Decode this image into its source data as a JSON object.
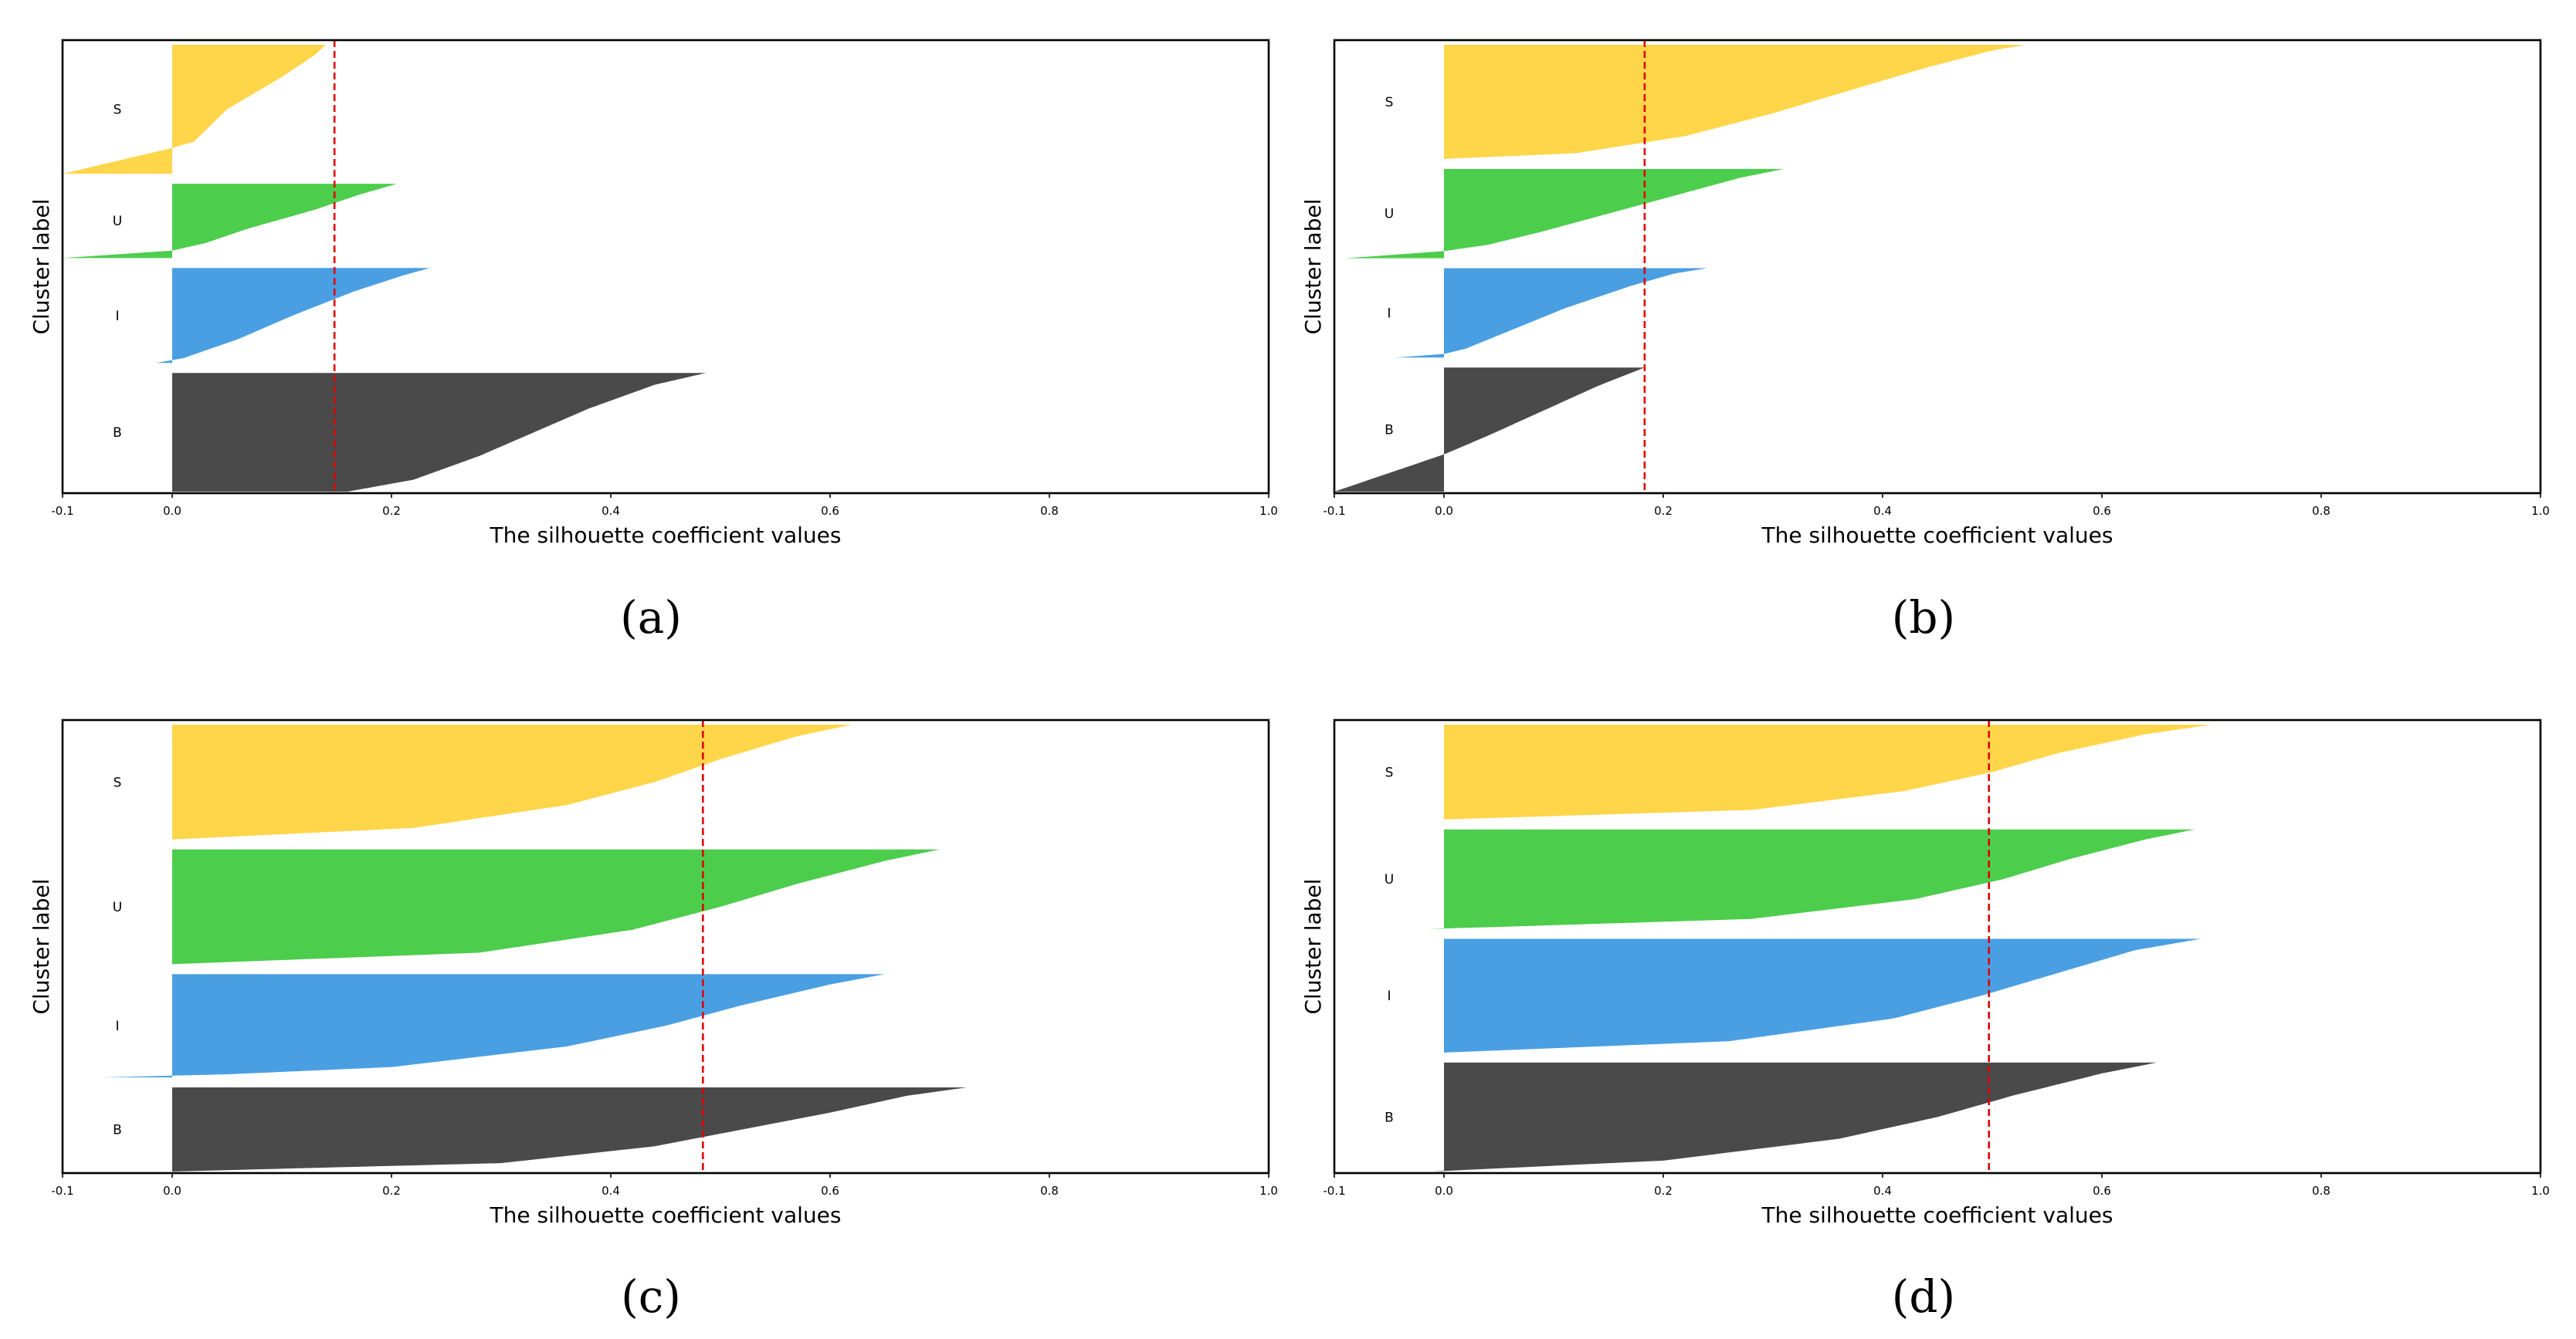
{
  "figure": {
    "palette": {
      "S": "#ffd54a",
      "U": "#4ccd4c",
      "I": "#4a9fe3",
      "B": "#4a4a4a",
      "mean_line": "#e00000",
      "axes": "#000000"
    }
  },
  "chart_data": [
    {
      "type": "silhouette",
      "caption": "(a)",
      "xlabel": "The silhouette coefficient values",
      "ylabel": "Cluster label",
      "xlim": [
        -0.1,
        1.0
      ],
      "xticks": [
        -0.1,
        0.0,
        0.2,
        0.4,
        0.6,
        0.8,
        1.0
      ],
      "xtick_labels": [
        "-0.1",
        "0.0",
        "0.2",
        "0.4",
        "0.6",
        "0.8",
        "1.0"
      ],
      "mean_silhouette": 0.148,
      "clusters": [
        {
          "label": "S",
          "size": 125,
          "max": 0.14,
          "min": -0.1,
          "profile": [
            [
              0,
              0.14
            ],
            [
              0.08,
              0.13
            ],
            [
              0.25,
              0.1
            ],
            [
              0.5,
              0.05
            ],
            [
              0.75,
              0.02
            ],
            [
              0.8,
              0.0
            ],
            [
              0.9,
              -0.05
            ],
            [
              1,
              -0.1
            ]
          ]
        },
        {
          "label": "U",
          "size": 72,
          "max": 0.205,
          "min": -0.1,
          "profile": [
            [
              0,
              0.205
            ],
            [
              0.15,
              0.17
            ],
            [
              0.35,
              0.13
            ],
            [
              0.6,
              0.07
            ],
            [
              0.8,
              0.03
            ],
            [
              0.9,
              0.0
            ],
            [
              1,
              -0.1
            ]
          ]
        },
        {
          "label": "I",
          "size": 92,
          "max": 0.235,
          "min": -0.015,
          "profile": [
            [
              0,
              0.235
            ],
            [
              0.08,
              0.21
            ],
            [
              0.25,
              0.165
            ],
            [
              0.5,
              0.11
            ],
            [
              0.75,
              0.06
            ],
            [
              0.95,
              0.01
            ],
            [
              1,
              -0.015
            ]
          ]
        },
        {
          "label": "B",
          "size": 115,
          "max": 0.487,
          "min": 0.16,
          "profile": [
            [
              0,
              0.487
            ],
            [
              0.1,
              0.44
            ],
            [
              0.3,
              0.38
            ],
            [
              0.5,
              0.33
            ],
            [
              0.7,
              0.28
            ],
            [
              0.9,
              0.22
            ],
            [
              1,
              0.16
            ]
          ]
        }
      ]
    },
    {
      "type": "silhouette",
      "caption": "(b)",
      "xlabel": "The silhouette coefficient values",
      "ylabel": "Cluster label",
      "xlim": [
        -0.1,
        1.0
      ],
      "xticks": [
        -0.1,
        0.0,
        0.2,
        0.4,
        0.6,
        0.8,
        1.0
      ],
      "xtick_labels": [
        "-0.1",
        "0.0",
        "0.2",
        "0.4",
        "0.6",
        "0.8",
        "1.0"
      ],
      "mean_silhouette": 0.183,
      "clusters": [
        {
          "label": "S",
          "size": 115,
          "max": 0.53,
          "min": 0.0,
          "profile": [
            [
              0,
              0.53
            ],
            [
              0.05,
              0.5
            ],
            [
              0.2,
              0.44
            ],
            [
              0.4,
              0.37
            ],
            [
              0.6,
              0.3
            ],
            [
              0.8,
              0.22
            ],
            [
              0.95,
              0.12
            ],
            [
              1,
              0.0
            ]
          ]
        },
        {
          "label": "U",
          "size": 90,
          "max": 0.31,
          "min": -0.09,
          "profile": [
            [
              0,
              0.31
            ],
            [
              0.1,
              0.27
            ],
            [
              0.3,
              0.21
            ],
            [
              0.5,
              0.15
            ],
            [
              0.7,
              0.09
            ],
            [
              0.85,
              0.04
            ],
            [
              0.92,
              0.0
            ],
            [
              1,
              -0.09
            ]
          ]
        },
        {
          "label": "I",
          "size": 90,
          "max": 0.24,
          "min": -0.045,
          "profile": [
            [
              0,
              0.24
            ],
            [
              0.06,
              0.21
            ],
            [
              0.2,
              0.17
            ],
            [
              0.45,
              0.11
            ],
            [
              0.7,
              0.06
            ],
            [
              0.9,
              0.02
            ],
            [
              0.96,
              0.0
            ],
            [
              1,
              -0.045
            ]
          ]
        },
        {
          "label": "B",
          "size": 125,
          "max": 0.183,
          "min": -0.1,
          "profile": [
            [
              0,
              0.183
            ],
            [
              0.15,
              0.14
            ],
            [
              0.35,
              0.09
            ],
            [
              0.55,
              0.04
            ],
            [
              0.7,
              0.0
            ],
            [
              0.85,
              -0.05
            ],
            [
              1,
              -0.1
            ]
          ]
        }
      ]
    },
    {
      "type": "silhouette",
      "caption": "(c)",
      "xlabel": "The silhouette coefficient values",
      "ylabel": "Cluster label",
      "xlim": [
        -0.1,
        1.0
      ],
      "xticks": [
        -0.1,
        0.0,
        0.2,
        0.4,
        0.6,
        0.8,
        1.0
      ],
      "xtick_labels": [
        "-0.1",
        "0.0",
        "0.2",
        "0.4",
        "0.6",
        "0.8",
        "1.0"
      ],
      "mean_silhouette": 0.484,
      "clusters": [
        {
          "label": "S",
          "size": 120,
          "max": 0.62,
          "min": 0.0,
          "profile": [
            [
              0,
              0.62
            ],
            [
              0.1,
              0.57
            ],
            [
              0.3,
              0.5
            ],
            [
              0.5,
              0.44
            ],
            [
              0.7,
              0.36
            ],
            [
              0.9,
              0.22
            ],
            [
              1,
              0.0
            ]
          ]
        },
        {
          "label": "U",
          "size": 120,
          "max": 0.7,
          "min": 0.0,
          "profile": [
            [
              0,
              0.7
            ],
            [
              0.1,
              0.65
            ],
            [
              0.3,
              0.57
            ],
            [
              0.5,
              0.5
            ],
            [
              0.7,
              0.42
            ],
            [
              0.9,
              0.28
            ],
            [
              1,
              0.0
            ]
          ]
        },
        {
          "label": "I",
          "size": 108,
          "max": 0.65,
          "min": -0.065,
          "profile": [
            [
              0,
              0.65
            ],
            [
              0.1,
              0.6
            ],
            [
              0.3,
              0.52
            ],
            [
              0.5,
              0.45
            ],
            [
              0.7,
              0.36
            ],
            [
              0.9,
              0.2
            ],
            [
              0.97,
              0.05
            ],
            [
              1,
              -0.065
            ]
          ]
        },
        {
          "label": "B",
          "size": 88,
          "max": 0.725,
          "min": 0.0,
          "profile": [
            [
              0,
              0.725
            ],
            [
              0.1,
              0.67
            ],
            [
              0.3,
              0.6
            ],
            [
              0.5,
              0.52
            ],
            [
              0.7,
              0.44
            ],
            [
              0.9,
              0.3
            ],
            [
              1,
              0.0
            ]
          ]
        }
      ]
    },
    {
      "type": "silhouette",
      "caption": "(d)",
      "xlabel": "The silhouette coefficient values",
      "ylabel": "Cluster label",
      "xlim": [
        -0.1,
        1.0
      ],
      "xticks": [
        -0.1,
        0.0,
        0.2,
        0.4,
        0.6,
        0.8,
        1.0
      ],
      "xtick_labels": [
        "-0.1",
        "0.0",
        "0.2",
        "0.4",
        "0.6",
        "0.8",
        "1.0"
      ],
      "mean_silhouette": 0.497,
      "clusters": [
        {
          "label": "S",
          "size": 100,
          "max": 0.7,
          "min": 0.0,
          "profile": [
            [
              0,
              0.7
            ],
            [
              0.1,
              0.64
            ],
            [
              0.3,
              0.56
            ],
            [
              0.5,
              0.5
            ],
            [
              0.7,
              0.42
            ],
            [
              0.9,
              0.28
            ],
            [
              1,
              0.0
            ]
          ]
        },
        {
          "label": "U",
          "size": 105,
          "max": 0.685,
          "min": -0.015,
          "profile": [
            [
              0,
              0.685
            ],
            [
              0.1,
              0.64
            ],
            [
              0.3,
              0.57
            ],
            [
              0.5,
              0.51
            ],
            [
              0.7,
              0.43
            ],
            [
              0.9,
              0.28
            ],
            [
              0.98,
              0.05
            ],
            [
              1,
              -0.015
            ]
          ]
        },
        {
          "label": "I",
          "size": 120,
          "max": 0.69,
          "min": 0.0,
          "profile": [
            [
              0,
              0.69
            ],
            [
              0.1,
              0.63
            ],
            [
              0.3,
              0.56
            ],
            [
              0.5,
              0.49
            ],
            [
              0.7,
              0.41
            ],
            [
              0.9,
              0.26
            ],
            [
              1,
              0.0
            ]
          ]
        },
        {
          "label": "B",
          "size": 115,
          "max": 0.65,
          "min": -0.01,
          "profile": [
            [
              0,
              0.65
            ],
            [
              0.1,
              0.6
            ],
            [
              0.3,
              0.52
            ],
            [
              0.5,
              0.45
            ],
            [
              0.7,
              0.36
            ],
            [
              0.9,
              0.2
            ],
            [
              0.98,
              0.03
            ],
            [
              1,
              -0.01
            ]
          ]
        }
      ]
    }
  ]
}
